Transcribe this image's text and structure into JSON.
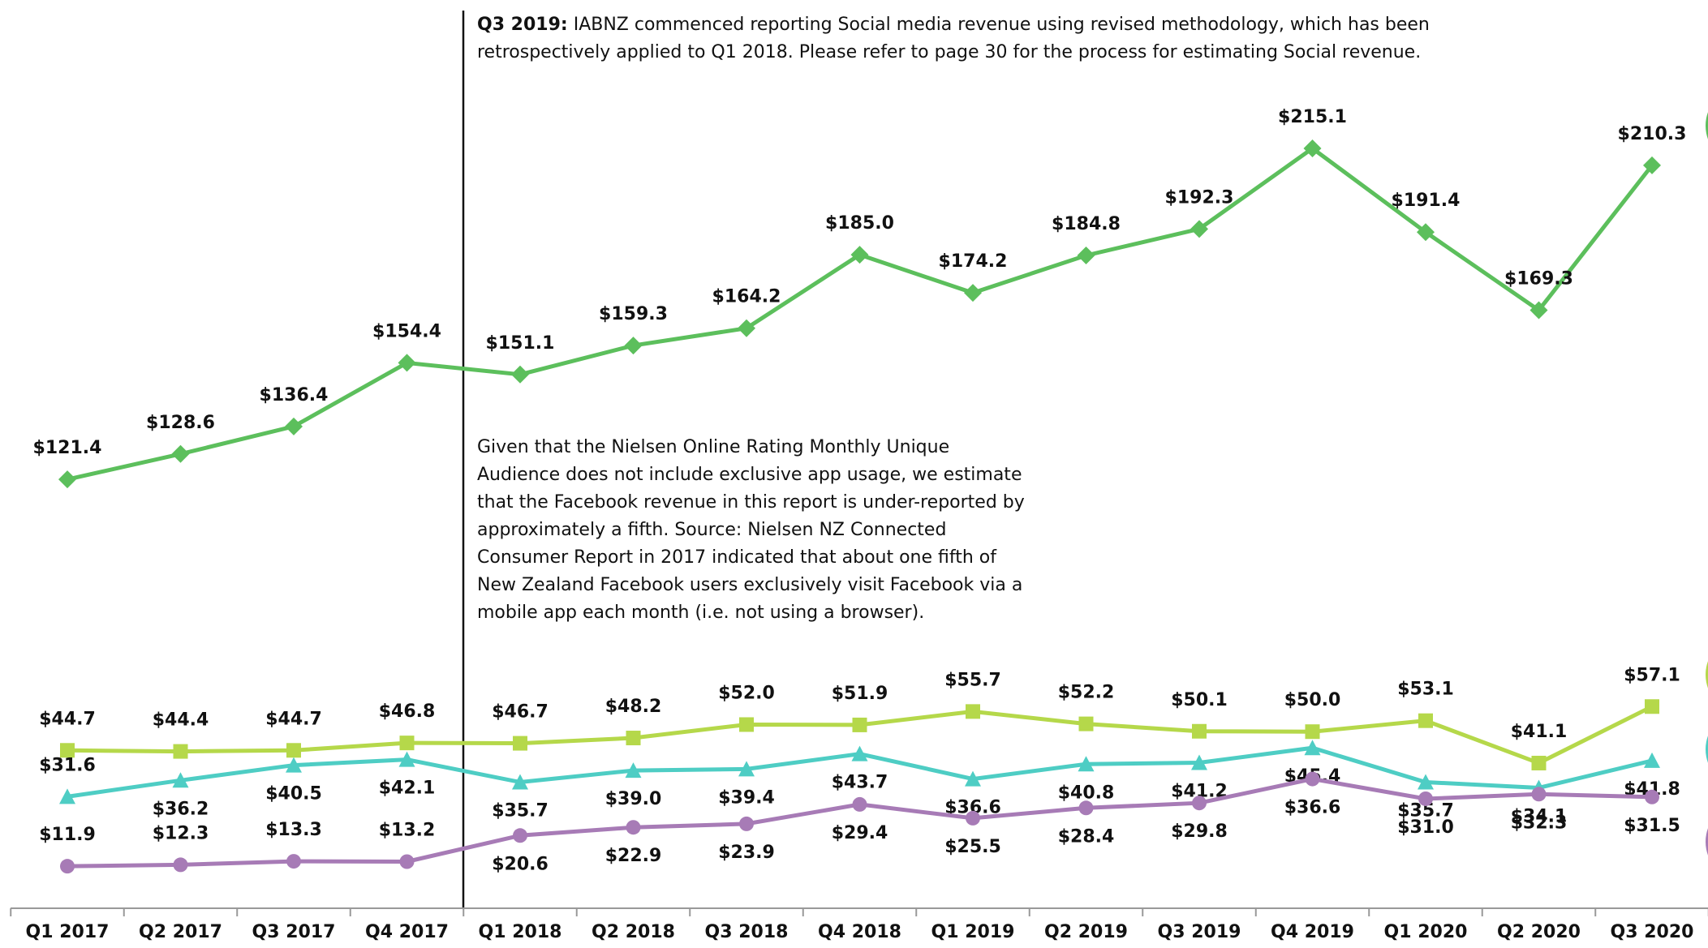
{
  "chart_data": {
    "type": "line",
    "categories": [
      "Q1 2017",
      "Q2 2017",
      "Q3 2017",
      "Q4 2017",
      "Q1 2018",
      "Q2 2018",
      "Q3 2018",
      "Q4 2018",
      "Q1 2019",
      "Q2 2019",
      "Q3 2019",
      "Q4 2019",
      "Q1 2020",
      "Q2 2020",
      "Q3 2020"
    ],
    "annotations": [
      {
        "label": "Q3 2019:",
        "text": "IABNZ commenced reporting Social media revenue using revised methodology, which has been retrospectively applied to Q1 2018. Please refer to page 30 for the process for estimating Social revenue."
      },
      {
        "text": "Given that the Nielsen Online Rating Monthly Unique Audience does not include exclusive app usage, we estimate that the Facebook revenue in this report is under-reported by approximately a fifth. Source: Nielsen NZ Connected Consumer Report in 2017 indicated that about one fifth of New Zealand Facebook users exclusively visit Facebook via a mobile app each month (i.e. not using a browser)."
      }
    ],
    "series": [
      {
        "color": "#5cbf5c",
        "marker": "diamond",
        "values": [
          121.4,
          128.6,
          136.4,
          154.4,
          151.1,
          159.3,
          164.2,
          185.0,
          174.2,
          184.8,
          192.3,
          215.1,
          191.4,
          169.3,
          210.3
        ],
        "value_labels": [
          "$121.4",
          "$128.6",
          "$136.4",
          "$154.4",
          "$151.1",
          "$159.3",
          "$164.2",
          "$185.0",
          "$174.2",
          "$184.8",
          "$192.3",
          "$215.1",
          "$191.4",
          "$169.3",
          "$210.3"
        ]
      },
      {
        "color": "#b5d84a",
        "marker": "square",
        "values": [
          44.7,
          44.4,
          44.7,
          46.8,
          46.7,
          48.2,
          52.0,
          51.9,
          55.7,
          52.2,
          50.1,
          50.0,
          53.1,
          41.1,
          57.1
        ],
        "value_labels": [
          "$44.7",
          "$44.4",
          "$44.7",
          "$46.8",
          "$46.7",
          "$48.2",
          "$52.0",
          "$51.9",
          "$55.7",
          "$52.2",
          "$50.1",
          "$50.0",
          "$53.1",
          "$41.1",
          "$57.1"
        ]
      },
      {
        "color": "#4ecdc4",
        "marker": "triangle",
        "values": [
          31.6,
          36.2,
          40.5,
          42.1,
          35.7,
          39.0,
          39.4,
          43.7,
          36.6,
          40.8,
          41.2,
          45.4,
          35.7,
          34.1,
          41.8
        ],
        "value_labels": [
          "$31.6",
          "$36.2",
          "$40.5",
          "$42.1",
          "$35.7",
          "$39.0",
          "$39.4",
          "$43.7",
          "$36.6",
          "$40.8",
          "$41.2",
          "$45.4",
          "$35.7",
          "$34.1",
          "$41.8"
        ]
      },
      {
        "color": "#a77bb6",
        "marker": "circle",
        "values": [
          11.9,
          12.3,
          13.3,
          13.2,
          20.6,
          22.9,
          23.9,
          29.4,
          25.5,
          28.4,
          29.8,
          36.6,
          31.0,
          32.3,
          31.5
        ],
        "value_labels": [
          "$11.9",
          "$12.3",
          "$13.3",
          "$13.2",
          "$20.6",
          "$22.9",
          "$23.9",
          "$29.4",
          "$25.5",
          "$28.4",
          "$29.8",
          "$36.6",
          "$31.0",
          "$32.3",
          "$31.5"
        ]
      }
    ]
  }
}
